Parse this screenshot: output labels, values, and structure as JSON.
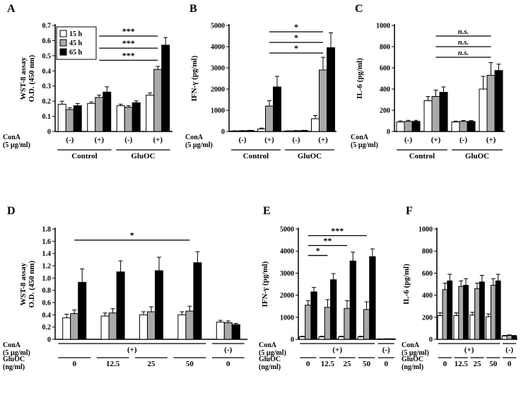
{
  "chart_data": [
    {
      "id": "A",
      "type": "bar",
      "ylabel_lines": [
        "WST-8 assay",
        "O.D. (450 nm)"
      ],
      "ylim": [
        0,
        0.7
      ],
      "ytick_step": 0.1,
      "ytick_decimals": 1,
      "legend": true,
      "series": [
        {
          "name": "15 h",
          "color": "#ffffff",
          "values": [
            0.18,
            0.185,
            0.17,
            0.24
          ],
          "errors": [
            0.02,
            0.01,
            0.01,
            0.015
          ]
        },
        {
          "name": "45 h",
          "color": "#a9a9a9",
          "values": [
            0.145,
            0.225,
            0.16,
            0.41
          ],
          "errors": [
            0.012,
            0.015,
            0.01,
            0.02
          ]
        },
        {
          "name": "65 h",
          "color": "#000000",
          "values": [
            0.17,
            0.26,
            0.19,
            0.57
          ],
          "errors": [
            0.015,
            0.035,
            0.012,
            0.05
          ]
        }
      ],
      "sig": [
        {
          "from": 1,
          "to": 3,
          "y": 0.47,
          "text": "***"
        },
        {
          "from": 1,
          "to": 3,
          "y": 0.55,
          "text": "***"
        },
        {
          "from": 1,
          "to": 3,
          "y": 0.63,
          "text": "***"
        }
      ],
      "rows": [
        {
          "label_lines": [
            "ConA",
            "(5 µg/ml)"
          ],
          "cells": [
            {
              "text": "(-)",
              "g0": 0,
              "g1": 0
            },
            {
              "text": "(+)",
              "g0": 1,
              "g1": 1
            },
            {
              "text": "(-)",
              "g0": 2,
              "g1": 2
            },
            {
              "text": "(+)",
              "g0": 3,
              "g1": 3
            }
          ]
        },
        {
          "label_lines": [],
          "cells": [
            {
              "text": "Control",
              "g0": 0,
              "g1": 1,
              "line": true
            },
            {
              "text": "GluOC",
              "g0": 2,
              "g1": 3,
              "line": true
            }
          ]
        }
      ]
    },
    {
      "id": "B",
      "type": "bar",
      "ylabel_lines": [
        "IFN-γ (pg/ml)"
      ],
      "ylim": [
        0,
        5000
      ],
      "ytick_step": 1000,
      "ytick_decimals": 0,
      "legend": false,
      "series": [
        {
          "name": "15 h",
          "color": "#ffffff",
          "values": [
            25,
            120,
            25,
            600
          ],
          "errors": [
            8,
            40,
            8,
            150
          ]
        },
        {
          "name": "45 h",
          "color": "#a9a9a9",
          "values": [
            35,
            1200,
            35,
            2900
          ],
          "errors": [
            8,
            250,
            8,
            600
          ]
        },
        {
          "name": "65 h",
          "color": "#000000",
          "values": [
            45,
            2100,
            45,
            3950
          ],
          "errors": [
            10,
            500,
            10,
            700
          ]
        }
      ],
      "sig": [
        {
          "from": 1,
          "to": 3,
          "y": 3700,
          "text": "*"
        },
        {
          "from": 1,
          "to": 3,
          "y": 4200,
          "text": "*"
        },
        {
          "from": 1,
          "to": 3,
          "y": 4700,
          "text": "*"
        }
      ],
      "rows": [
        {
          "label_lines": [
            "ConA",
            "(5 µg/ml)"
          ],
          "cells": [
            {
              "text": "(-)",
              "g0": 0,
              "g1": 0
            },
            {
              "text": "(+)",
              "g0": 1,
              "g1": 1
            },
            {
              "text": "(-)",
              "g0": 2,
              "g1": 2
            },
            {
              "text": "(+)",
              "g0": 3,
              "g1": 3
            }
          ]
        },
        {
          "label_lines": [],
          "cells": [
            {
              "text": "Control",
              "g0": 0,
              "g1": 1,
              "line": true
            },
            {
              "text": "GluOC",
              "g0": 2,
              "g1": 3,
              "line": true
            }
          ]
        }
      ]
    },
    {
      "id": "C",
      "type": "bar",
      "ylabel_lines": [
        "IL-6 (pg/ml)"
      ],
      "ylim": [
        0,
        1000
      ],
      "ytick_step": 200,
      "ytick_decimals": 0,
      "legend": false,
      "series": [
        {
          "name": "15 h",
          "color": "#ffffff",
          "values": [
            90,
            290,
            90,
            400
          ],
          "errors": [
            10,
            40,
            8,
            120
          ]
        },
        {
          "name": "45 h",
          "color": "#a9a9a9",
          "values": [
            95,
            330,
            95,
            530
          ],
          "errors": [
            10,
            60,
            8,
            120
          ]
        },
        {
          "name": "65 h",
          "color": "#000000",
          "values": [
            95,
            370,
            95,
            575
          ],
          "errors": [
            10,
            50,
            8,
            60
          ]
        }
      ],
      "sig": [
        {
          "from": 1,
          "to": 3,
          "y": 700,
          "text": "n.s.",
          "italic": true
        },
        {
          "from": 1,
          "to": 3,
          "y": 800,
          "text": "n.s.",
          "italic": true
        },
        {
          "from": 1,
          "to": 3,
          "y": 900,
          "text": "n.s.",
          "italic": true
        }
      ],
      "rows": [
        {
          "label_lines": [
            "ConA",
            "(5 µg/ml)"
          ],
          "cells": [
            {
              "text": "(-)",
              "g0": 0,
              "g1": 0
            },
            {
              "text": "(+)",
              "g0": 1,
              "g1": 1
            },
            {
              "text": "(-)",
              "g0": 2,
              "g1": 2
            },
            {
              "text": "(+)",
              "g0": 3,
              "g1": 3
            }
          ]
        },
        {
          "label_lines": [],
          "cells": [
            {
              "text": "Control",
              "g0": 0,
              "g1": 1,
              "line": true
            },
            {
              "text": "GluOC",
              "g0": 2,
              "g1": 3,
              "line": true
            }
          ]
        }
      ]
    },
    {
      "id": "D",
      "type": "bar",
      "ylabel_lines": [
        "WST-8 assay",
        "O.D. (450 nm)"
      ],
      "ylim": [
        0,
        1.8
      ],
      "ytick_step": 0.2,
      "ytick_decimals": 1,
      "legend": false,
      "series": [
        {
          "name": "15 h",
          "color": "#ffffff",
          "values": [
            0.35,
            0.38,
            0.4,
            0.4,
            0.28
          ],
          "errors": [
            0.06,
            0.05,
            0.05,
            0.05,
            0.03
          ]
        },
        {
          "name": "45 h",
          "color": "#a9a9a9",
          "values": [
            0.42,
            0.43,
            0.45,
            0.46,
            0.27
          ],
          "errors": [
            0.06,
            0.07,
            0.08,
            0.08,
            0.03
          ]
        },
        {
          "name": "65 h",
          "color": "#000000",
          "values": [
            0.93,
            1.1,
            1.12,
            1.25,
            0.24
          ],
          "errors": [
            0.22,
            0.18,
            0.22,
            0.18,
            0.02
          ]
        }
      ],
      "sig": [
        {
          "from": 0,
          "to": 3,
          "y": 1.62,
          "text": "*"
        }
      ],
      "rows": [
        {
          "label_lines": [
            "ConA",
            "(5 µg/ml)"
          ],
          "cells": [
            {
              "text": "(+)",
              "g0": 0,
              "g1": 3,
              "line": true
            },
            {
              "text": "(-)",
              "g0": 4,
              "g1": 4,
              "line": true
            }
          ]
        },
        {
          "label_lines": [
            "GluOC",
            "(ng/ml)"
          ],
          "cells": [
            {
              "text": "0",
              "g0": 0,
              "g1": 0,
              "line": true
            },
            {
              "text": "12.5",
              "g0": 1,
              "g1": 1,
              "line": true
            },
            {
              "text": "25",
              "g0": 2,
              "g1": 2,
              "line": true
            },
            {
              "text": "50",
              "g0": 3,
              "g1": 3,
              "line": true
            },
            {
              "text": "0",
              "g0": 4,
              "g1": 4,
              "line": true
            }
          ]
        }
      ]
    },
    {
      "id": "E",
      "type": "bar",
      "ylabel_lines": [
        "IFN-γ (pg/ml)"
      ],
      "ylim": [
        0,
        5000
      ],
      "ytick_step": 1000,
      "ytick_decimals": 0,
      "legend": false,
      "series": [
        {
          "name": "15 h",
          "color": "#ffffff",
          "values": [
            110,
            110,
            110,
            110,
            15
          ],
          "errors": [
            30,
            30,
            30,
            30,
            5
          ]
        },
        {
          "name": "45 h",
          "color": "#a9a9a9",
          "values": [
            1550,
            1450,
            1400,
            1350,
            20
          ],
          "errors": [
            200,
            350,
            350,
            350,
            5
          ]
        },
        {
          "name": "65 h",
          "color": "#000000",
          "values": [
            2150,
            2700,
            3550,
            3750,
            20
          ],
          "errors": [
            200,
            280,
            400,
            350,
            5
          ]
        }
      ],
      "sig": [
        {
          "from": 0,
          "to": 1,
          "y": 3800,
          "text": "*"
        },
        {
          "from": 0,
          "to": 2,
          "y": 4250,
          "text": "**"
        },
        {
          "from": 0,
          "to": 3,
          "y": 4700,
          "text": "***"
        }
      ],
      "rows": [
        {
          "label_lines": [
            "ConA",
            "(5 µg/ml)"
          ],
          "cells": [
            {
              "text": "(+)",
              "g0": 0,
              "g1": 3,
              "line": true
            },
            {
              "text": "(-)",
              "g0": 4,
              "g1": 4,
              "line": true
            }
          ]
        },
        {
          "label_lines": [
            "GluOC",
            "(ng/ml)"
          ],
          "cells": [
            {
              "text": "0",
              "g0": 0,
              "g1": 0,
              "line": true
            },
            {
              "text": "12.5",
              "g0": 1,
              "g1": 1,
              "line": true
            },
            {
              "text": "25",
              "g0": 2,
              "g1": 2,
              "line": true
            },
            {
              "text": "50",
              "g0": 3,
              "g1": 3,
              "line": true
            },
            {
              "text": "0",
              "g0": 4,
              "g1": 4,
              "line": true
            }
          ]
        }
      ]
    },
    {
      "id": "F",
      "type": "bar",
      "ylabel_lines": [
        "IL-6 (pg/ml)"
      ],
      "ylim": [
        0,
        1000
      ],
      "ytick_step": 200,
      "ytick_decimals": 0,
      "legend": false,
      "series": [
        {
          "name": "15 h",
          "color": "#ffffff",
          "values": [
            215,
            215,
            220,
            205,
            30
          ],
          "errors": [
            25,
            25,
            25,
            25,
            5
          ]
        },
        {
          "name": "45 h",
          "color": "#a9a9a9",
          "values": [
            450,
            480,
            460,
            490,
            35
          ],
          "errors": [
            60,
            50,
            50,
            60,
            5
          ]
        },
        {
          "name": "65 h",
          "color": "#000000",
          "values": [
            530,
            490,
            520,
            530,
            30
          ],
          "errors": [
            60,
            60,
            60,
            60,
            5
          ]
        }
      ],
      "sig": [],
      "rows": [
        {
          "label_lines": [
            "ConA",
            "(5 µg/ml)"
          ],
          "cells": [
            {
              "text": "(+)",
              "g0": 0,
              "g1": 3,
              "line": true
            },
            {
              "text": "(-)",
              "g0": 4,
              "g1": 4,
              "line": true
            }
          ]
        },
        {
          "label_lines": [
            "GluOC",
            "(ng/ml)"
          ],
          "cells": [
            {
              "text": "0",
              "g0": 0,
              "g1": 0,
              "line": true
            },
            {
              "text": "12.5",
              "g0": 1,
              "g1": 1,
              "line": true
            },
            {
              "text": "25",
              "g0": 2,
              "g1": 2,
              "line": true
            },
            {
              "text": "50",
              "g0": 3,
              "g1": 3,
              "line": true
            },
            {
              "text": "0",
              "g0": 4,
              "g1": 4,
              "line": true
            }
          ]
        }
      ]
    }
  ]
}
